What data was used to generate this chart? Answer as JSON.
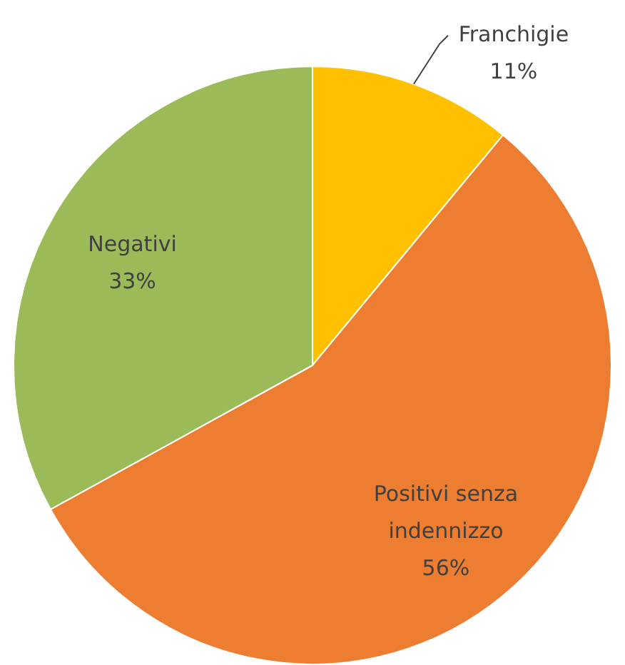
{
  "chart_data": {
    "type": "pie",
    "categories": [
      "Franchigie",
      "Positivi senza indennizzo",
      "Negativi"
    ],
    "values": [
      11,
      56,
      33
    ],
    "value_labels": [
      "11%",
      "56%",
      "33%"
    ],
    "colors": [
      "#ffc000",
      "#ed7d31",
      "#9bbb59"
    ],
    "legend": false
  }
}
